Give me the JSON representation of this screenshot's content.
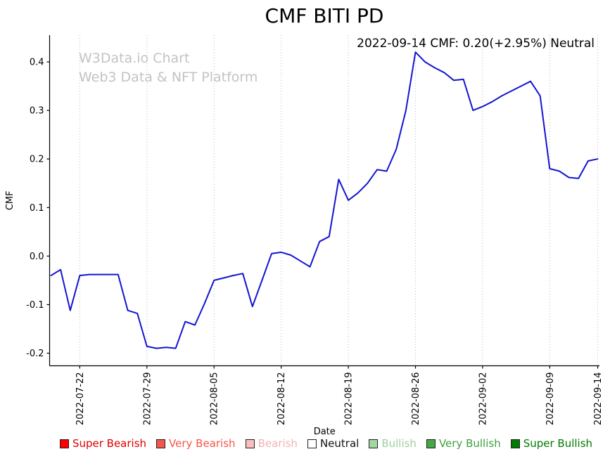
{
  "header": {
    "title": "CMF BITI PD",
    "annotation": "2022-09-14 CMF: 0.20(+2.95%) Neutral"
  },
  "watermark": {
    "line1": "W3Data.io Chart",
    "line2": "Web3 Data & NFT Platform"
  },
  "chart_data": {
    "type": "line",
    "title": "CMF BITI PD",
    "xlabel": "Date",
    "ylabel": "CMF",
    "line_color": "#1414d2",
    "grid": "vertical-dotted",
    "ylim": [
      -0.226,
      0.4551
    ],
    "y_ticks": [
      -0.2,
      -0.1,
      0.0,
      0.1,
      0.2,
      0.3,
      0.4
    ],
    "y_tick_labels": [
      "-0.2",
      "-0.1",
      "0.0",
      "0.1",
      "0.2",
      "0.3",
      "0.4"
    ],
    "x_tick_labels": [
      "2022-07-22",
      "2022-07-29",
      "2022-08-05",
      "2022-08-12",
      "2022-08-19",
      "2022-08-26",
      "2022-09-02",
      "2022-09-09",
      "2022-09-14"
    ],
    "series": [
      {
        "name": "CMF",
        "dates": [
          "2022-07-19",
          "2022-07-20",
          "2022-07-21",
          "2022-07-22",
          "2022-07-23",
          "2022-07-24",
          "2022-07-25",
          "2022-07-26",
          "2022-07-27",
          "2022-07-28",
          "2022-07-29",
          "2022-07-30",
          "2022-07-31",
          "2022-08-01",
          "2022-08-02",
          "2022-08-03",
          "2022-08-04",
          "2022-08-05",
          "2022-08-06",
          "2022-08-07",
          "2022-08-08",
          "2022-08-09",
          "2022-08-10",
          "2022-08-11",
          "2022-08-12",
          "2022-08-13",
          "2022-08-14",
          "2022-08-15",
          "2022-08-16",
          "2022-08-17",
          "2022-08-18",
          "2022-08-19",
          "2022-08-20",
          "2022-08-21",
          "2022-08-22",
          "2022-08-23",
          "2022-08-24",
          "2022-08-25",
          "2022-08-26",
          "2022-08-27",
          "2022-08-28",
          "2022-08-29",
          "2022-08-30",
          "2022-08-31",
          "2022-09-01",
          "2022-09-02",
          "2022-09-03",
          "2022-09-04",
          "2022-09-05",
          "2022-09-06",
          "2022-09-07",
          "2022-09-08",
          "2022-09-09",
          "2022-09-10",
          "2022-09-11",
          "2022-09-12",
          "2022-09-13",
          "2022-09-14"
        ],
        "values": [
          -0.04,
          -0.028,
          -0.112,
          -0.04,
          -0.038,
          -0.038,
          -0.038,
          -0.038,
          -0.112,
          -0.118,
          -0.186,
          -0.19,
          -0.188,
          -0.19,
          -0.135,
          -0.142,
          -0.098,
          -0.05,
          -0.045,
          -0.04,
          -0.036,
          -0.104,
          -0.05,
          0.005,
          0.008,
          0.002,
          -0.01,
          -0.022,
          0.03,
          0.04,
          0.158,
          0.115,
          0.13,
          0.15,
          0.178,
          0.175,
          0.22,
          0.3,
          0.42,
          0.4,
          0.388,
          0.378,
          0.362,
          0.364,
          0.3,
          0.308,
          0.318,
          0.33,
          0.34,
          0.35,
          0.36,
          0.33,
          0.18,
          0.175,
          0.162,
          0.16,
          0.196,
          0.2
        ]
      }
    ]
  },
  "legend": {
    "items": [
      {
        "label": "Super Bearish",
        "color": "#ff0000",
        "text_color": "#e00000"
      },
      {
        "label": "Very Bearish",
        "color": "#f4564a",
        "text_color": "#f4564a"
      },
      {
        "label": "Bearish",
        "color": "#f9bfbf",
        "text_color": "#f2b4b4"
      },
      {
        "label": "Neutral",
        "color": "#ffffff",
        "text_color": "#111111"
      },
      {
        "label": "Bullish",
        "color": "#a3d6a3",
        "text_color": "#9fd09f"
      },
      {
        "label": "Very Bullish",
        "color": "#44a844",
        "text_color": "#3da03d"
      },
      {
        "label": "Super Bullish",
        "color": "#007a00",
        "text_color": "#007a00"
      }
    ]
  }
}
